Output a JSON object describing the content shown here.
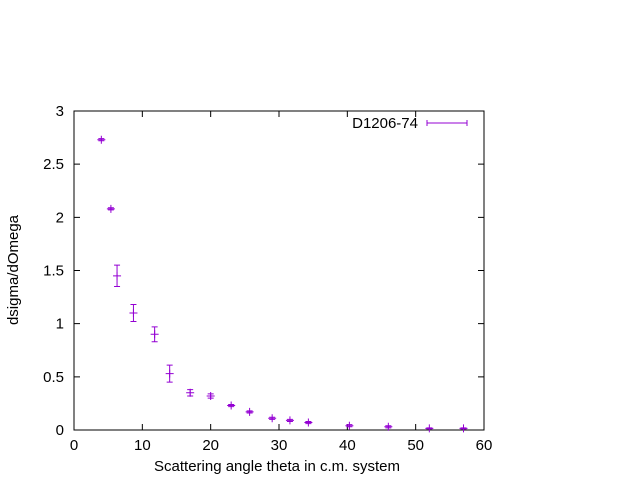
{
  "chart_data": {
    "type": "scatter",
    "xlabel": "Scattering angle theta in c.m. system",
    "ylabel": "dsigma/dOmega",
    "xlim": [
      0,
      60
    ],
    "xticks": [
      0,
      10,
      20,
      30,
      40,
      50,
      60
    ],
    "ylim": [
      0,
      3
    ],
    "yticks": [
      0,
      0.5,
      1,
      1.5,
      2,
      2.5,
      3
    ],
    "legend": "top-right",
    "series": [
      {
        "name": "D1206-74",
        "color": "#9400d3",
        "x": [
          4.0,
          5.4,
          6.3,
          8.7,
          11.8,
          14.0,
          17.0,
          20.0,
          23.0,
          25.7,
          29.0,
          31.6,
          34.3,
          40.3,
          46.0,
          52.0,
          57.0
        ],
        "values": [
          2.73,
          2.08,
          1.45,
          1.1,
          0.9,
          0.53,
          0.35,
          0.32,
          0.23,
          0.17,
          0.11,
          0.09,
          0.07,
          0.04,
          0.03,
          0.015,
          0.015
        ],
        "errors": [
          0.01,
          0.01,
          0.1,
          0.08,
          0.07,
          0.08,
          0.03,
          0.02,
          0.01,
          0.01,
          0.01,
          0.01,
          0.01,
          0.01,
          0.01,
          0.005,
          0.005
        ]
      }
    ]
  }
}
